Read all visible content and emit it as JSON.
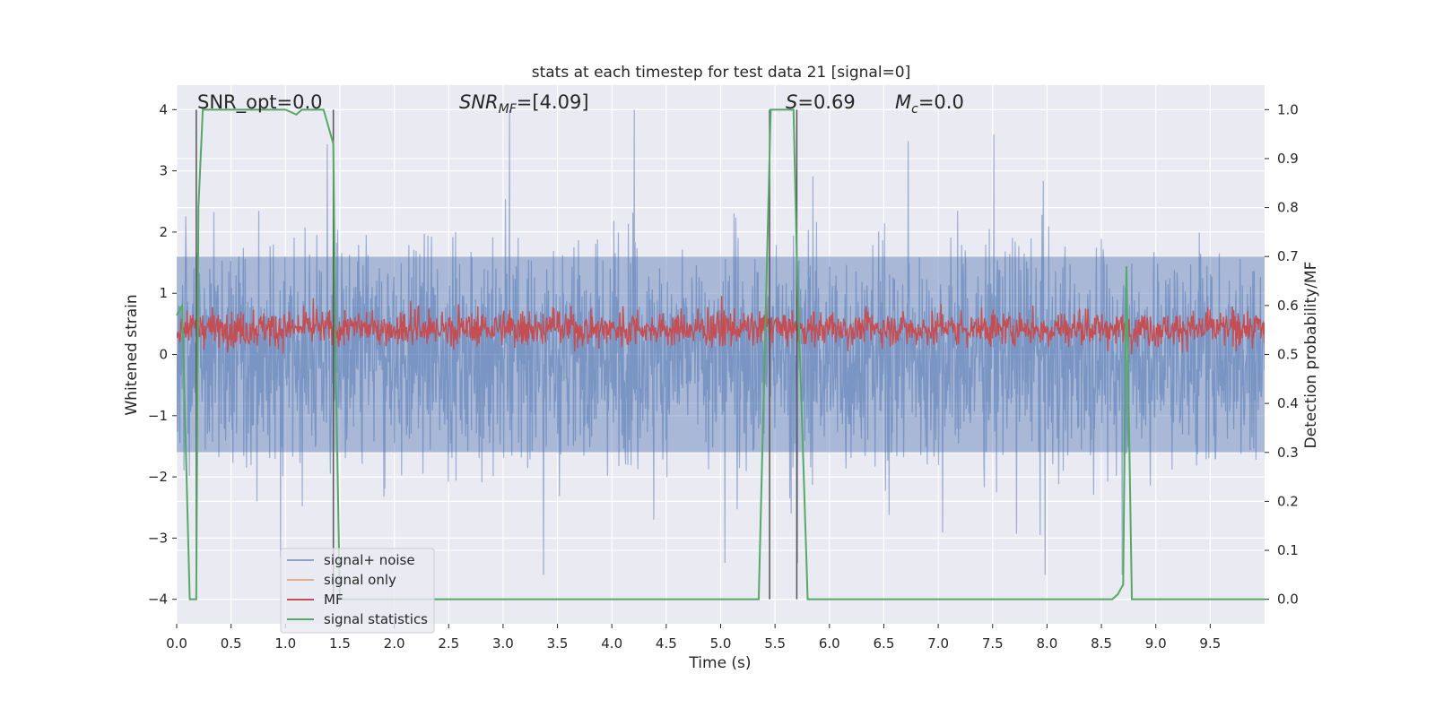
{
  "chart_data": {
    "type": "line",
    "title": "stats at each timestep for test data 21 [signal=0]",
    "xlabel": "Time (s)",
    "ylabel": "Whitened strain",
    "ylabel_right": "Detection probability/MF",
    "xlim": [
      0.0,
      10.0
    ],
    "ylim": [
      -4.4,
      4.4
    ],
    "ylim_right": [
      -0.05,
      1.05
    ],
    "x_ticks": [
      0.0,
      0.5,
      1.0,
      1.5,
      2.0,
      2.5,
      3.0,
      3.5,
      4.0,
      4.5,
      5.0,
      5.5,
      6.0,
      6.5,
      7.0,
      7.5,
      8.0,
      8.5,
      9.0,
      9.5
    ],
    "x_tick_labels": [
      "0.0",
      "0.5",
      "1.0",
      "1.5",
      "2.0",
      "2.5",
      "3.0",
      "3.5",
      "4.0",
      "4.5",
      "5.0",
      "5.5",
      "6.0",
      "6.5",
      "7.0",
      "7.5",
      "8.0",
      "8.5",
      "9.0",
      "9.5"
    ],
    "y_ticks": [
      4,
      3,
      2,
      1,
      0,
      -1,
      -2,
      -3,
      -4
    ],
    "y_tick_labels": [
      "4",
      "3",
      "2",
      "1",
      "0",
      "−1",
      "−2",
      "−3",
      "−4"
    ],
    "y_right_ticks": [
      1.0,
      0.9,
      0.8,
      0.7,
      0.6,
      0.5,
      0.4,
      0.3,
      0.2,
      0.1,
      0.0
    ],
    "y_right_tick_labels": [
      "1.0",
      "0.9",
      "0.8",
      "0.7",
      "0.6",
      "0.5",
      "0.4",
      "0.3",
      "0.2",
      "0.1",
      "0.0"
    ],
    "grid": true,
    "background": "#eaeaf2",
    "legend": {
      "position": "lower-left",
      "entries": [
        {
          "label": "signal+ noise",
          "color": "#4c72b0"
        },
        {
          "label": "signal only",
          "color": "#dd8452"
        },
        {
          "label": "MF",
          "color": "#c44e52"
        },
        {
          "label": "signal statistics",
          "color": "#55a868"
        }
      ]
    },
    "series": [
      {
        "name": "signal+ noise",
        "axis": "left",
        "color": "#4c72b0",
        "alpha": 0.5,
        "kind": "noise",
        "envelope_typical": [
          -1.6,
          1.6
        ],
        "peak_range": [
          -3.6,
          4.0
        ]
      },
      {
        "name": "signal only",
        "axis": "left",
        "color": "#dd8452",
        "values": []
      },
      {
        "name": "MF",
        "axis": "right",
        "color": "#c44e52",
        "kind": "noise",
        "range": [
          0.5,
          0.62
        ],
        "max_spike": 0.63
      },
      {
        "name": "signal statistics",
        "axis": "right",
        "color": "#55a868",
        "x": [
          0.0,
          0.05,
          0.12,
          0.18,
          0.2,
          0.24,
          0.3,
          1.0,
          1.1,
          1.15,
          1.2,
          1.35,
          1.44,
          1.46,
          1.5,
          5.3,
          5.35,
          5.46,
          5.5,
          5.6,
          5.67,
          5.7,
          5.8,
          8.6,
          8.65,
          8.7,
          8.73,
          8.78,
          8.82,
          10.0
        ],
        "y": [
          0.58,
          0.6,
          0.0,
          0.0,
          0.8,
          1.0,
          1.0,
          1.0,
          0.99,
          1.0,
          1.0,
          1.0,
          0.93,
          0.5,
          0.0,
          0.0,
          0.0,
          1.0,
          1.0,
          1.0,
          1.0,
          0.7,
          0.0,
          0.0,
          0.01,
          0.03,
          0.68,
          0.0,
          0.0,
          0.0
        ]
      }
    ],
    "vertical_markers": [
      0.18,
      1.44,
      5.45,
      5.7
    ],
    "annotations": [
      {
        "label": "SNR_opt=0.0"
      },
      {
        "label_main": "SNR",
        "label_sub": "MF",
        "label_rest": "=[4.09]"
      },
      {
        "label_main": "S",
        "label_rest": "=0.69"
      },
      {
        "label_main": "M",
        "label_sub": "c",
        "label_rest": "=0.0"
      }
    ]
  }
}
